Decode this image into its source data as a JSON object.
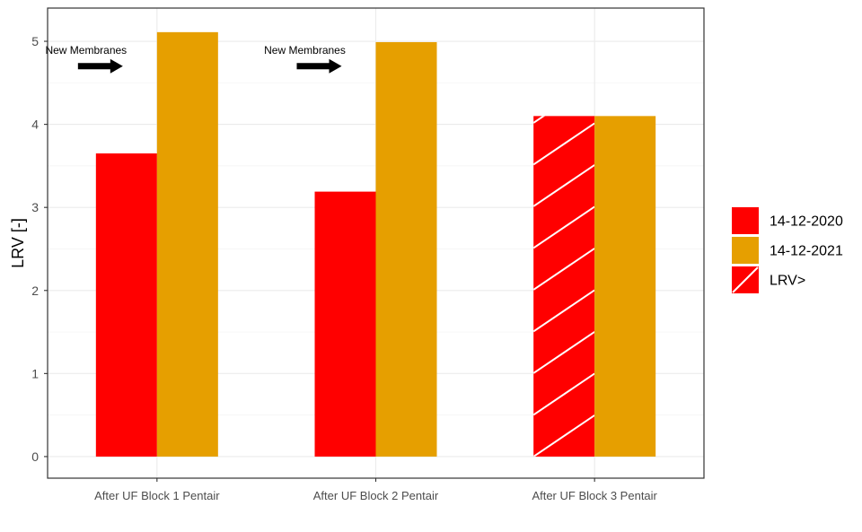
{
  "chart_data": {
    "type": "bar",
    "categories": [
      "After UF Block 1 Pentair",
      "After UF Block 2 Pentair",
      "After UF Block 3 Pentair"
    ],
    "series": [
      {
        "name": "14-12-2020",
        "color": "#ff0000",
        "values": [
          3.65,
          3.19,
          4.1
        ],
        "hatched": [
          false,
          false,
          true
        ]
      },
      {
        "name": "14-12-2021",
        "color": "#e69f00",
        "values": [
          5.11,
          4.99,
          4.1
        ],
        "hatched": [
          false,
          false,
          false
        ]
      }
    ],
    "legend": {
      "position": "right",
      "entries": [
        {
          "label": "14-12-2020",
          "color": "#ff0000",
          "hatched": false
        },
        {
          "label": "14-12-2021",
          "color": "#e69f00",
          "hatched": false
        },
        {
          "label": "LRV>",
          "color": "#ff0000",
          "hatched": true
        }
      ]
    },
    "annotations": [
      {
        "text": "New Membranes",
        "category_index": 0,
        "y": 4.7,
        "arrow": "right"
      },
      {
        "text": "New Membranes",
        "category_index": 1,
        "y": 4.7,
        "arrow": "right"
      }
    ],
    "title": "",
    "xlabel": "",
    "ylabel": "LRV [-]",
    "ylim": [
      -0.26,
      5.4
    ],
    "yticks": [
      0,
      1,
      2,
      3,
      4,
      5
    ],
    "grid": true
  }
}
